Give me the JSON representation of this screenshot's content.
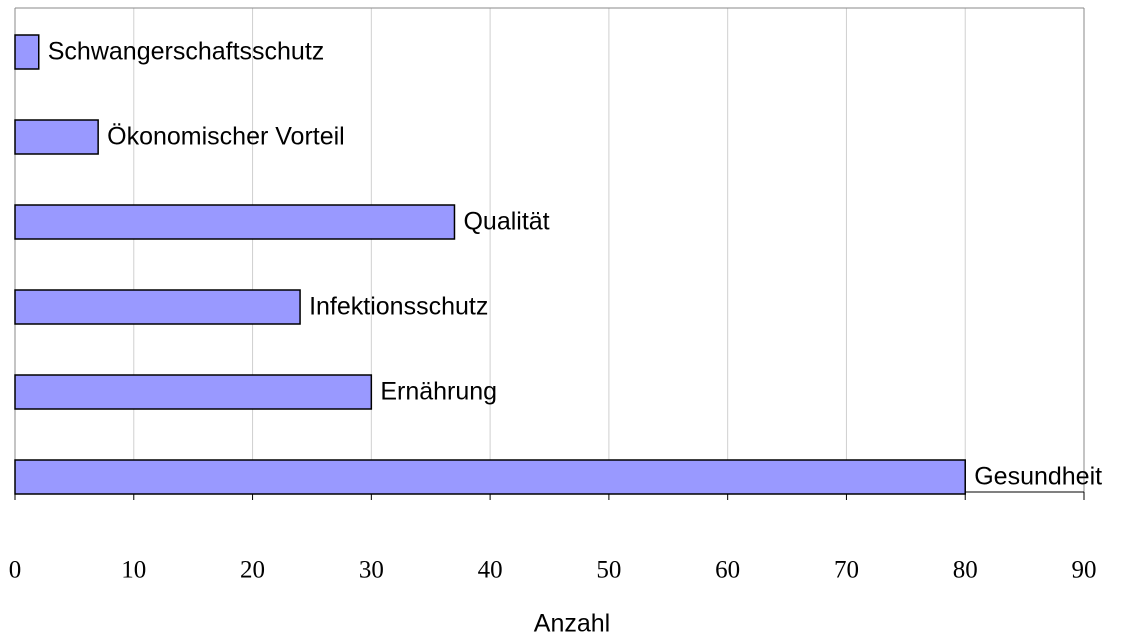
{
  "chart_data": {
    "type": "barh",
    "xlabel": "Anzahl",
    "categories": [
      "Schwangerschaftsschutz",
      "Ökonomischer Vorteil",
      "Qualität",
      "Infektionsschutz",
      "Ernährung",
      "Gesundheit"
    ],
    "values": [
      2,
      7,
      37,
      24,
      30,
      80
    ],
    "color": "#9999ff",
    "xlim": [
      0,
      90
    ],
    "xticks": [
      0,
      10,
      20,
      30,
      40,
      50,
      60,
      70,
      80,
      90
    ],
    "grid": true
  }
}
